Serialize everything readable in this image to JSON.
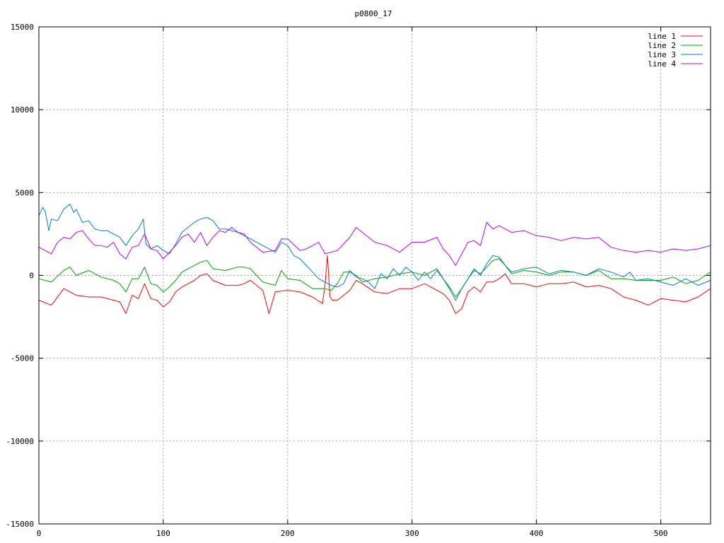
{
  "chart_data": {
    "type": "line",
    "title": "p0800_17",
    "xlabel": "",
    "ylabel": "",
    "xlim": [
      0,
      540
    ],
    "ylim": [
      -15000,
      15000
    ],
    "xticks": [
      0,
      100,
      200,
      300,
      400,
      500
    ],
    "yticks": [
      -15000,
      -10000,
      -5000,
      0,
      5000,
      10000,
      15000
    ],
    "grid": true,
    "legend_position": "top-right",
    "series": [
      {
        "name": "line 1",
        "color": "#ff0000",
        "x": [
          0,
          10,
          20,
          30,
          40,
          50,
          60,
          65,
          70,
          75,
          80,
          85,
          90,
          95,
          100,
          105,
          110,
          115,
          120,
          125,
          130,
          135,
          140,
          150,
          160,
          165,
          170,
          175,
          180,
          185,
          190,
          200,
          210,
          220,
          228,
          230,
          232,
          234,
          236,
          240,
          250,
          255,
          260,
          270,
          280,
          290,
          300,
          310,
          320,
          325,
          330,
          335,
          340,
          345,
          350,
          355,
          360,
          365,
          370,
          375,
          380,
          390,
          400,
          410,
          420,
          430,
          440,
          450,
          460,
          470,
          480,
          490,
          500,
          510,
          520,
          530,
          540
        ],
        "y": [
          -1500,
          -1800,
          -800,
          -1200,
          -1300,
          -1300,
          -1500,
          -1600,
          -2300,
          -1200,
          -1400,
          -500,
          -1400,
          -1500,
          -1900,
          -1600,
          -1000,
          -700,
          -500,
          -300,
          0,
          100,
          -300,
          -600,
          -600,
          -500,
          -300,
          -600,
          -900,
          -2300,
          -1000,
          -900,
          -1000,
          -1300,
          -1700,
          -600,
          1200,
          -1300,
          -1500,
          -1500,
          -900,
          -300,
          -500,
          -1000,
          -1100,
          -800,
          -800,
          -500,
          -900,
          -1100,
          -1500,
          -2300,
          -2000,
          -1000,
          -700,
          -1000,
          -400,
          -400,
          -200,
          100,
          -500,
          -500,
          -700,
          -500,
          -500,
          -400,
          -700,
          -600,
          -800,
          -1300,
          -1500,
          -1800,
          -1400,
          -1500,
          -1600,
          -1300,
          -800
        ]
      },
      {
        "name": "line 2",
        "color": "#00a000",
        "x": [
          0,
          10,
          20,
          25,
          30,
          40,
          50,
          60,
          65,
          70,
          75,
          80,
          85,
          90,
          95,
          100,
          105,
          110,
          115,
          120,
          125,
          130,
          135,
          140,
          150,
          160,
          165,
          170,
          180,
          190,
          195,
          200,
          210,
          220,
          230,
          235,
          240,
          245,
          250,
          255,
          260,
          270,
          280,
          290,
          300,
          310,
          320,
          325,
          330,
          335,
          340,
          345,
          350,
          355,
          360,
          365,
          370,
          375,
          380,
          390,
          400,
          410,
          420,
          430,
          440,
          450,
          460,
          470,
          480,
          490,
          500,
          510,
          520,
          530,
          540
        ],
        "y": [
          -200,
          -400,
          300,
          500,
          0,
          300,
          -100,
          -300,
          -500,
          -1000,
          -200,
          -200,
          500,
          -500,
          -600,
          -1000,
          -700,
          -300,
          200,
          400,
          600,
          800,
          900,
          400,
          300,
          500,
          500,
          400,
          -400,
          -600,
          300,
          -200,
          -300,
          -800,
          -800,
          -900,
          -500,
          200,
          200,
          0,
          -400,
          -200,
          -100,
          100,
          200,
          0,
          400,
          -200,
          -700,
          -1300,
          -800,
          -200,
          300,
          100,
          500,
          900,
          1000,
          600,
          100,
          300,
          200,
          0,
          200,
          200,
          0,
          300,
          -200,
          -200,
          -300,
          -300,
          -300,
          -100,
          -500,
          -300,
          200
        ]
      },
      {
        "name": "line 3",
        "color": "#0080c0",
        "x": [
          0,
          3,
          5,
          8,
          10,
          15,
          20,
          25,
          28,
          30,
          35,
          40,
          45,
          50,
          55,
          60,
          65,
          70,
          75,
          80,
          84,
          86,
          90,
          95,
          100,
          105,
          110,
          115,
          120,
          125,
          130,
          135,
          140,
          145,
          150,
          160,
          170,
          180,
          190,
          195,
          200,
          205,
          210,
          215,
          220,
          225,
          230,
          235,
          240,
          245,
          250,
          255,
          260,
          265,
          270,
          275,
          280,
          285,
          290,
          295,
          300,
          305,
          310,
          315,
          320,
          325,
          330,
          335,
          340,
          345,
          350,
          355,
          360,
          365,
          370,
          375,
          380,
          390,
          400,
          410,
          420,
          430,
          440,
          450,
          460,
          470,
          475,
          480,
          490,
          500,
          510,
          520,
          530,
          540
        ],
        "y": [
          3600,
          4100,
          3900,
          2700,
          3400,
          3300,
          4000,
          4300,
          3800,
          4000,
          3200,
          3300,
          2800,
          2700,
          2700,
          2500,
          2300,
          1800,
          2400,
          2800,
          3400,
          1900,
          1600,
          1800,
          1500,
          1300,
          1900,
          2600,
          2900,
          3200,
          3400,
          3500,
          3300,
          2800,
          2800,
          2600,
          2200,
          1800,
          1400,
          2000,
          1800,
          1200,
          1000,
          600,
          200,
          -200,
          -400,
          -600,
          -700,
          -500,
          300,
          -100,
          -200,
          -400,
          -800,
          100,
          -200,
          400,
          0,
          500,
          200,
          -300,
          200,
          -200,
          300,
          -200,
          -800,
          -1500,
          -800,
          -200,
          400,
          0,
          700,
          1200,
          1100,
          600,
          200,
          400,
          500,
          100,
          300,
          200,
          0,
          400,
          200,
          -100,
          200,
          -300,
          -200,
          -400,
          -600,
          -200,
          -600,
          -300
        ]
      },
      {
        "name": "line 4",
        "color": "#c000ff",
        "x": [
          0,
          5,
          10,
          15,
          20,
          25,
          30,
          35,
          40,
          45,
          50,
          55,
          60,
          65,
          70,
          75,
          80,
          85,
          90,
          95,
          100,
          105,
          110,
          115,
          120,
          125,
          130,
          135,
          140,
          145,
          150,
          155,
          160,
          165,
          170,
          180,
          190,
          195,
          200,
          210,
          215,
          220,
          225,
          230,
          240,
          250,
          255,
          260,
          270,
          280,
          290,
          300,
          310,
          320,
          325,
          330,
          335,
          340,
          345,
          350,
          355,
          360,
          365,
          370,
          380,
          390,
          400,
          410,
          420,
          430,
          440,
          450,
          460,
          470,
          480,
          490,
          500,
          510,
          520,
          530,
          540
        ],
        "y": [
          1700,
          1500,
          1300,
          2000,
          2300,
          2200,
          2600,
          2700,
          2200,
          1800,
          1800,
          1700,
          2000,
          1300,
          1000,
          1700,
          1800,
          2500,
          1600,
          1500,
          1000,
          1400,
          1800,
          2300,
          2500,
          2000,
          2600,
          1800,
          2300,
          2700,
          2600,
          2900,
          2600,
          2500,
          2000,
          1400,
          1500,
          2200,
          2200,
          1500,
          1600,
          1800,
          2000,
          1300,
          1500,
          2300,
          2900,
          2600,
          2000,
          1800,
          1400,
          2000,
          2000,
          2300,
          1600,
          1200,
          600,
          1300,
          2000,
          2100,
          1800,
          3200,
          2800,
          3000,
          2600,
          2700,
          2400,
          2300,
          2100,
          2300,
          2200,
          2300,
          1700,
          1500,
          1400,
          1500,
          1400,
          1600,
          1500,
          1600,
          1800
        ]
      }
    ]
  }
}
